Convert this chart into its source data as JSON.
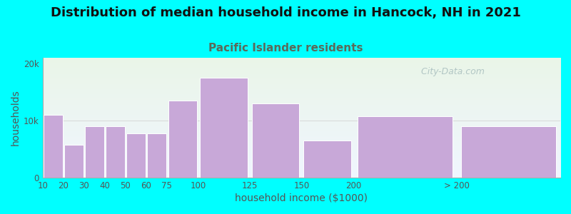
{
  "title": "Distribution of median household income in Hancock, NH in 2021",
  "subtitle": "Pacific Islander residents",
  "xlabel": "household income ($1000)",
  "ylabel": "households",
  "background_color": "#00FFFF",
  "plot_bg_top": "#eaf5e8",
  "plot_bg_bottom": "#f0f5ff",
  "bar_color": "#C8A8D8",
  "bar_edge_color": "#ffffff",
  "categories": [
    "10",
    "20",
    "30",
    "40",
    "50",
    "60",
    "75",
    "100",
    "125",
    "150",
    "200",
    "> 200"
  ],
  "values": [
    11000,
    5800,
    9000,
    9000,
    7800,
    7800,
    13500,
    17500,
    13000,
    6500,
    10800,
    9000
  ],
  "bin_lefts": [
    0,
    10,
    20,
    30,
    40,
    50,
    60,
    75,
    100,
    125,
    150,
    200
  ],
  "bin_rights": [
    10,
    20,
    30,
    40,
    50,
    60,
    75,
    100,
    125,
    150,
    200,
    250
  ],
  "ylim": [
    0,
    21000
  ],
  "yticks": [
    0,
    10000,
    20000
  ],
  "ytick_labels": [
    "0",
    "10k",
    "20k"
  ],
  "title_fontsize": 13,
  "subtitle_fontsize": 11,
  "axis_label_fontsize": 10,
  "tick_fontsize": 8.5,
  "watermark_text": "  City-Data.com",
  "watermark_color": "#a8bebe",
  "title_color": "#111111",
  "subtitle_color": "#5a6a5a",
  "axis_label_color": "#555555",
  "tick_color": "#555555"
}
